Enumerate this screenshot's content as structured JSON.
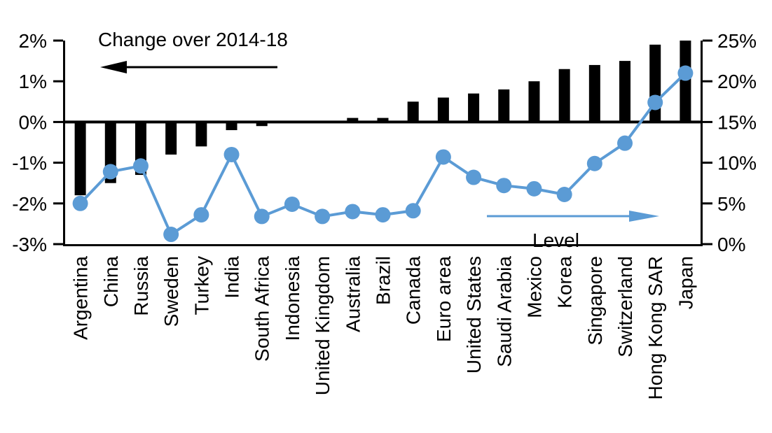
{
  "chart_data": {
    "type": "combo-bar-line",
    "categories": [
      "Argentina",
      "China",
      "Russia",
      "Sweden",
      "Turkey",
      "India",
      "South Africa",
      "Indonesia",
      "United Kingdom",
      "Australia",
      "Brazil",
      "Canada",
      "Euro area",
      "United States",
      "Saudi Arabia",
      "Mexico",
      "Korea",
      "Singapore",
      "Switzerland",
      "Hong Kong SAR",
      "Japan"
    ],
    "series": [
      {
        "name": "Change over 2014-18",
        "type": "bar",
        "axis": "left",
        "color": "#000000",
        "values": [
          -1.8,
          -1.5,
          -1.3,
          -0.8,
          -0.6,
          -0.2,
          -0.1,
          0.0,
          0.0,
          0.1,
          0.1,
          0.5,
          0.6,
          0.7,
          0.8,
          1.0,
          1.3,
          1.4,
          1.5,
          1.9,
          2.0
        ]
      },
      {
        "name": "Level",
        "type": "line",
        "axis": "right",
        "color": "#5B9BD5",
        "values": [
          5.0,
          8.9,
          9.6,
          1.2,
          3.6,
          11.0,
          3.4,
          4.9,
          3.4,
          4.0,
          3.6,
          4.1,
          10.7,
          8.2,
          7.2,
          6.8,
          6.1,
          9.9,
          12.4,
          17.4,
          21.0
        ]
      }
    ],
    "left_axis": {
      "tick_labels": [
        "2%",
        "1%",
        "0%",
        "-1%",
        "-2%",
        "-3%"
      ],
      "tick_values": [
        2,
        1,
        0,
        -1,
        -2,
        -3
      ],
      "ylim": [
        -3,
        2
      ]
    },
    "right_axis": {
      "tick_labels": [
        "25%",
        "20%",
        "15%",
        "10%",
        "5%",
        "0%"
      ],
      "tick_values": [
        25,
        20,
        15,
        10,
        5,
        0
      ],
      "ylim": [
        0,
        25
      ]
    },
    "annotations": {
      "bar_arrow_direction": "left",
      "line_arrow_direction": "right"
    },
    "grid": false,
    "legend_position": "in-plot annotations with arrows"
  }
}
